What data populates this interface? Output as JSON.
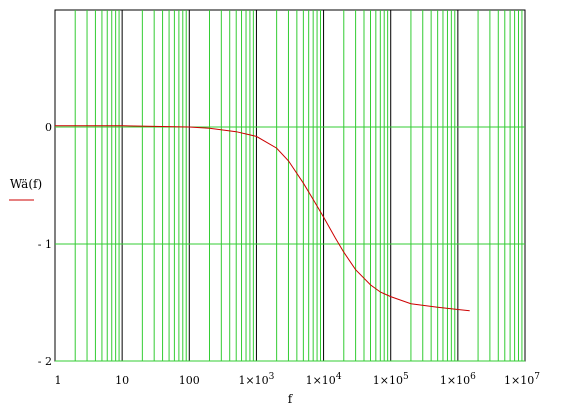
{
  "chart_data": {
    "type": "line",
    "xscale": "log",
    "xlim": [
      1,
      10000000
    ],
    "ylim": [
      -2,
      1
    ],
    "grid": true,
    "xlabel": "f",
    "ylabel": "Wä(f)",
    "xticks": [
      {
        "value": 1,
        "mant": "1",
        "exp": ""
      },
      {
        "value": 10,
        "mant": "10",
        "exp": ""
      },
      {
        "value": 100,
        "mant": "100",
        "exp": ""
      },
      {
        "value": 1000,
        "mant": "1×10",
        "exp": "3"
      },
      {
        "value": 10000,
        "mant": "1×10",
        "exp": "4"
      },
      {
        "value": 100000,
        "mant": "1×10",
        "exp": "5"
      },
      {
        "value": 1000000,
        "mant": "1×10",
        "exp": "6"
      },
      {
        "value": 10000000,
        "mant": "1×10",
        "exp": "7"
      }
    ],
    "yticks": [
      {
        "value": 0,
        "label": "0"
      },
      {
        "value": -1,
        "label": "- 1"
      },
      {
        "value": -2,
        "label": "- 2"
      }
    ],
    "colors": {
      "grid": "#33cc33",
      "decade": "#000000",
      "series": "#cc0000"
    },
    "series": [
      {
        "x": [
          1,
          10,
          100,
          200,
          500,
          1000,
          2000,
          3000,
          5000,
          7000,
          10000,
          15000,
          20000,
          30000,
          50000,
          70000,
          100000,
          200000,
          500000,
          1000000,
          1500000
        ],
        "y": [
          0.01,
          0.01,
          0.0,
          -0.01,
          -0.04,
          -0.08,
          -0.18,
          -0.29,
          -0.48,
          -0.62,
          -0.77,
          -0.95,
          -1.07,
          -1.22,
          -1.35,
          -1.41,
          -1.45,
          -1.51,
          -1.54,
          -1.56,
          -1.57
        ]
      }
    ]
  }
}
